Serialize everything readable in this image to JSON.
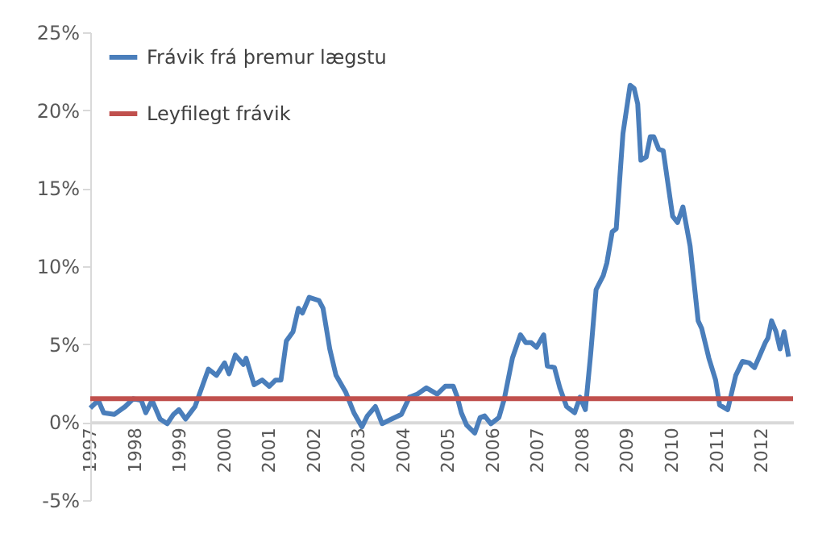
{
  "chart_data": {
    "type": "line",
    "x": [
      1997.0,
      1997.18,
      1997.3,
      1997.54,
      1997.78,
      1997.96,
      1998.14,
      1998.24,
      1998.38,
      1998.56,
      1998.72,
      1998.86,
      1998.98,
      1999.13,
      1999.34,
      1999.64,
      1999.82,
      2000.0,
      2000.1,
      2000.24,
      2000.42,
      2000.48,
      2000.66,
      2000.84,
      2001.0,
      2001.14,
      2001.26,
      2001.38,
      2001.53,
      2001.65,
      2001.74,
      2001.89,
      2002.11,
      2002.2,
      2002.35,
      2002.49,
      2002.71,
      2002.89,
      2003.07,
      2003.19,
      2003.37,
      2003.52,
      2003.73,
      2003.95,
      2004.13,
      2004.31,
      2004.51,
      2004.75,
      2004.93,
      2005.11,
      2005.2,
      2005.29,
      2005.41,
      2005.59,
      2005.71,
      2005.81,
      2005.95,
      2006.13,
      2006.25,
      2006.43,
      2006.61,
      2006.73,
      2006.85,
      2006.97,
      2007.13,
      2007.21,
      2007.37,
      2007.49,
      2007.64,
      2007.82,
      2007.94,
      2008.06,
      2008.18,
      2008.3,
      2008.46,
      2008.54,
      2008.66,
      2008.75,
      2008.9,
      2009.06,
      2009.15,
      2009.23,
      2009.3,
      2009.42,
      2009.51,
      2009.59,
      2009.7,
      2009.8,
      2010.01,
      2010.12,
      2010.24,
      2010.4,
      2010.58,
      2010.66,
      2010.82,
      2010.97,
      2011.06,
      2011.24,
      2011.42,
      2011.57,
      2011.72,
      2011.84,
      2011.96,
      2012.08,
      2012.14,
      2012.22,
      2012.32,
      2012.41,
      2012.5,
      2012.6
    ],
    "series": [
      {
        "name": "Frávik frá þremur lægstu",
        "color": "#4a7ebb",
        "values": [
          0.9,
          1.4,
          0.6,
          0.5,
          1.0,
          1.5,
          1.4,
          0.6,
          1.4,
          0.2,
          -0.1,
          0.5,
          0.8,
          0.2,
          1.0,
          3.4,
          3.0,
          3.8,
          3.1,
          4.3,
          3.7,
          4.1,
          2.4,
          2.7,
          2.3,
          2.7,
          2.7,
          5.2,
          5.8,
          7.3,
          7.0,
          8.0,
          7.8,
          7.3,
          4.7,
          3.0,
          1.9,
          0.6,
          -0.3,
          0.4,
          1.0,
          -0.1,
          0.2,
          0.5,
          1.6,
          1.8,
          2.2,
          1.8,
          2.3,
          2.3,
          1.6,
          0.6,
          -0.2,
          -0.7,
          0.3,
          0.4,
          -0.1,
          0.3,
          1.5,
          4.1,
          5.6,
          5.1,
          5.1,
          4.8,
          5.6,
          3.6,
          3.5,
          2.2,
          1.0,
          0.6,
          1.6,
          0.8,
          4.4,
          8.5,
          9.4,
          10.2,
          12.2,
          12.4,
          18.5,
          21.6,
          21.4,
          20.4,
          16.8,
          17.0,
          18.3,
          18.3,
          17.5,
          17.4,
          13.2,
          12.8,
          13.8,
          11.3,
          6.5,
          6.0,
          4.1,
          2.7,
          1.1,
          0.8,
          3.0,
          3.9,
          3.8,
          3.5,
          4.3,
          5.1,
          5.4,
          6.5,
          5.8,
          4.7,
          5.8,
          4.2
        ]
      }
    ],
    "ref_lines": [
      {
        "axis": "y",
        "value": 1.5,
        "label": "Leyfilegt frávik",
        "color": "#c0504d"
      }
    ],
    "xlim": [
      1997.0,
      2012.7
    ],
    "xticks": [
      1997,
      1998,
      1999,
      2000,
      2001,
      2002,
      2003,
      2004,
      2005,
      2006,
      2007,
      2008,
      2009,
      2010,
      2011,
      2012
    ],
    "ylim": [
      -5,
      25
    ],
    "yticks": [
      {
        "value": -5,
        "label": "-5%"
      },
      {
        "value": 0,
        "label": "0%"
      },
      {
        "value": 5,
        "label": "5%"
      },
      {
        "value": 10,
        "label": "10%"
      },
      {
        "value": 15,
        "label": "15%"
      },
      {
        "value": 20,
        "label": "20%"
      },
      {
        "value": 25,
        "label": "25%"
      }
    ],
    "legend": "top left",
    "grid": false,
    "marker": "none",
    "line_style": "solid"
  }
}
